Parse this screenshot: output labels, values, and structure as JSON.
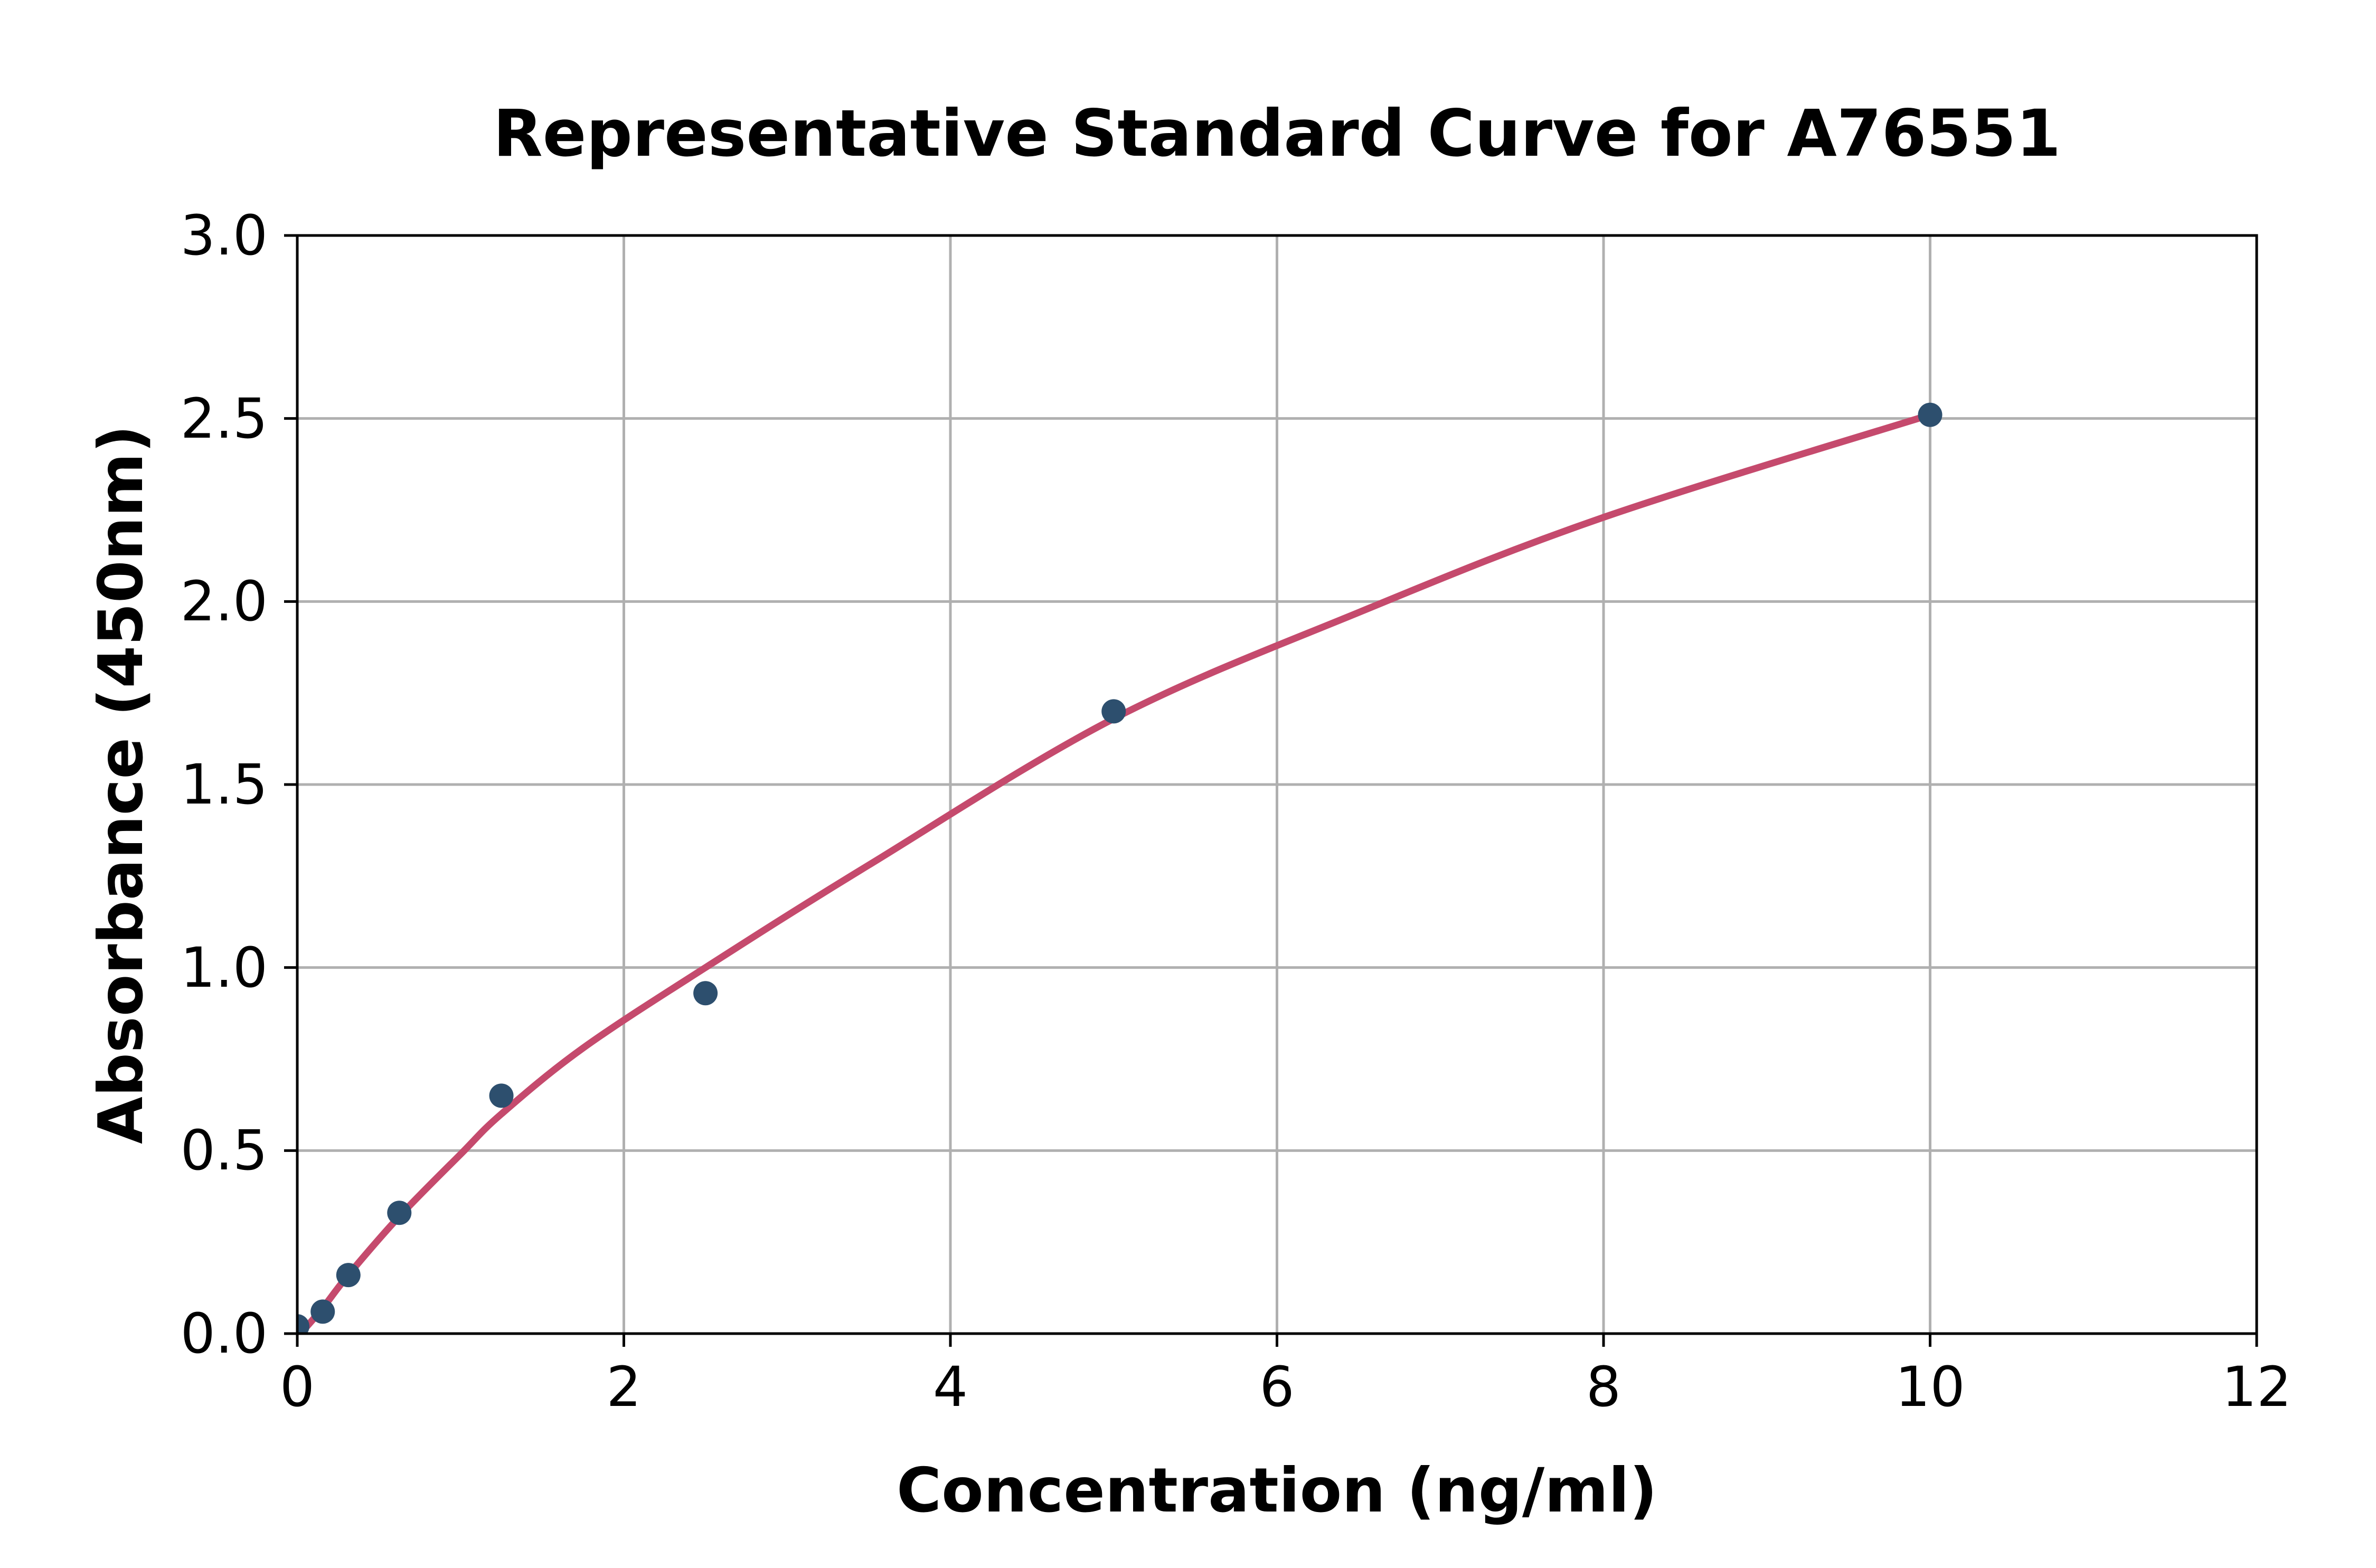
{
  "figure": {
    "background": "#ffffff"
  },
  "chart_data": {
    "type": "scatter",
    "title": "Representative Standard Curve for A76551",
    "xlabel": "Concentration (ng/ml)",
    "ylabel": "Absorbance (450nm)",
    "xlim": [
      0,
      12
    ],
    "ylim": [
      0,
      3
    ],
    "x_ticks": [
      "0",
      "2",
      "4",
      "6",
      "8",
      "10",
      "12"
    ],
    "y_ticks": [
      "0.0",
      "0.5",
      "1.0",
      "1.5",
      "2.0",
      "2.5",
      "3.0"
    ],
    "grid": true,
    "legend_position": "none",
    "colors": {
      "marker": "#2d4f6e",
      "curve": "#c54a6d",
      "grid": "#b0b0b0",
      "axis": "#000000"
    },
    "series": [
      {
        "name": "standard-points",
        "type": "scatter",
        "color": "#2d4f6e",
        "points": [
          [
            0,
            0.02
          ],
          [
            0.156,
            0.06
          ],
          [
            0.313,
            0.16
          ],
          [
            0.625,
            0.33
          ],
          [
            1.25,
            0.65
          ],
          [
            2.5,
            0.93
          ],
          [
            5,
            1.7
          ],
          [
            10,
            2.51
          ]
        ]
      },
      {
        "name": "fitted-curve",
        "type": "line",
        "color": "#c54a6d",
        "points": [
          [
            0.02,
            0.0
          ],
          [
            0.156,
            0.07
          ],
          [
            0.3125,
            0.16
          ],
          [
            0.625,
            0.32
          ],
          [
            1.0,
            0.49
          ],
          [
            1.25,
            0.6
          ],
          [
            1.75,
            0.78
          ],
          [
            2.5,
            1.0
          ],
          [
            3.5,
            1.28
          ],
          [
            5.0,
            1.68
          ],
          [
            6.5,
            1.97
          ],
          [
            8.0,
            2.23
          ],
          [
            10.0,
            2.51
          ]
        ]
      }
    ]
  }
}
